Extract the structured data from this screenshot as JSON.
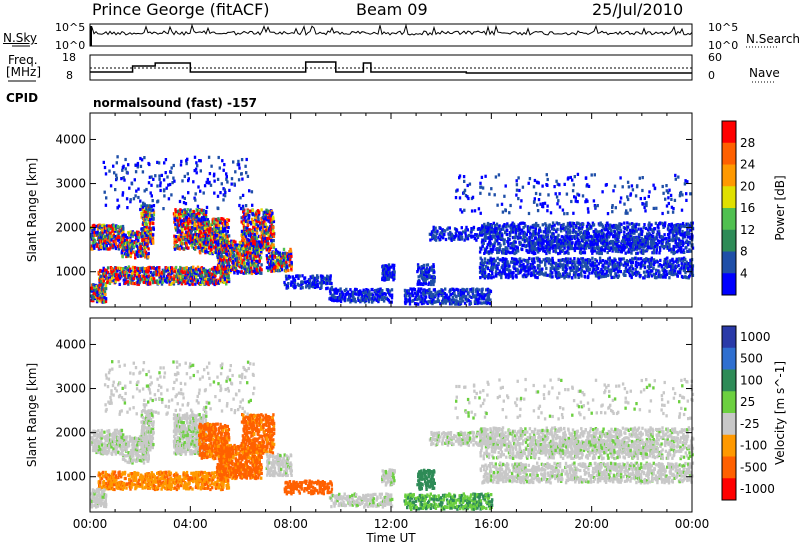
{
  "header": {
    "station": "Prince George (fitACF)",
    "beam": "Beam 09",
    "date": "25/Jul/2010"
  },
  "nsky_panel": {
    "left_label": "N.Sky",
    "right_label": "N.Search",
    "ticks_left": [
      "10^5",
      "10^0"
    ],
    "ticks_right": [
      "10^5",
      "10^0"
    ]
  },
  "freq_panel": {
    "left_label_line1": "Freq.",
    "left_label_line2": "[MHz]",
    "right_label": "Nave",
    "ticks_left": [
      "18",
      "8"
    ],
    "ticks_right": [
      "60",
      "0"
    ]
  },
  "cpid": {
    "label": "CPID",
    "program": "normalsound (fast) -157"
  },
  "chart_data": [
    {
      "type": "heatmap",
      "name": "power",
      "ylabel": "Slant Range [km]",
      "xlabel": "",
      "ylim": [
        200,
        4600
      ],
      "xlim": [
        0,
        24
      ],
      "y_ticks": [
        "1000",
        "2000",
        "3000",
        "4000"
      ],
      "colorbar": {
        "label": "Power [dB]",
        "ticks": [
          "4",
          "8",
          "12",
          "16",
          "20",
          "24",
          "28"
        ],
        "colors": [
          "#0000ff",
          "#1f4fa8",
          "#2e8b57",
          "#50c050",
          "#e0e000",
          "#ff9900",
          "#ff6000",
          "#ff0000"
        ]
      }
    },
    {
      "type": "heatmap",
      "name": "velocity",
      "ylabel": "Slant Range [km]",
      "xlabel": "Time UT",
      "ylim": [
        200,
        4600
      ],
      "xlim": [
        0,
        24
      ],
      "y_ticks": [
        "1000",
        "2000",
        "3000",
        "4000"
      ],
      "x_ticks": [
        "00:00",
        "04:00",
        "08:00",
        "12:00",
        "16:00",
        "20:00",
        "00:00"
      ],
      "colorbar": {
        "label": "Velocity [m s^-1]",
        "ticks": [
          "1000",
          "500",
          "100",
          "25",
          "-25",
          "-100",
          "-500",
          "-1000"
        ],
        "colors": [
          "#2a3aa8",
          "#2f6fd0",
          "#2e8b57",
          "#6cd040",
          "#c8c8c8",
          "#ff9900",
          "#ff6000",
          "#ff0000"
        ]
      }
    }
  ]
}
